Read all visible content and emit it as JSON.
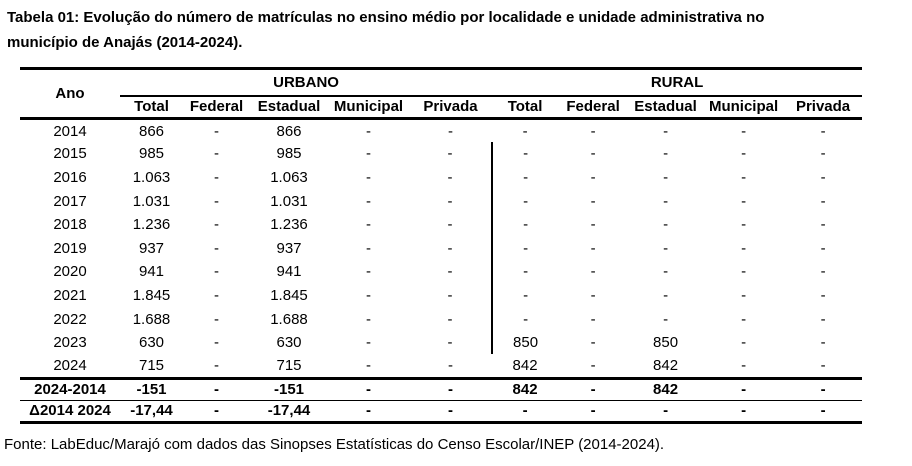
{
  "page": {
    "title_line1": "Tabela 01: Evolução do número de matrículas no ensino médio por localidade e unidade administrativa no",
    "title_line2": "município de Anajás (2014-2024).",
    "source": "Fonte: LabEduc/Marajó com dados das Sinopses Estatísticas do Censo Escolar/INEP (2014-2024)."
  },
  "chart_data": {
    "type": "table",
    "year_header": "Ano",
    "group_headers": [
      {
        "label": "URBANO"
      },
      {
        "label": "RURAL"
      }
    ],
    "sub_headers": [
      "Total",
      "Federal",
      "Estadual",
      "Municipal",
      "Privada",
      "Total",
      "Federal",
      "Estadual",
      "Municipal",
      "Privada"
    ],
    "rows": [
      {
        "ano": "2014",
        "values": [
          "866",
          "-",
          "866",
          "-",
          "-",
          "-",
          "-",
          "-",
          "-",
          "-"
        ]
      },
      {
        "ano": "2015",
        "values": [
          "985",
          "-",
          "985",
          "-",
          "-",
          "-",
          "-",
          "-",
          "-",
          "-"
        ]
      },
      {
        "ano": "2016",
        "values": [
          "1.063",
          "-",
          "1.063",
          "-",
          "-",
          "-",
          "-",
          "-",
          "-",
          "-"
        ]
      },
      {
        "ano": "2017",
        "values": [
          "1.031",
          "-",
          "1.031",
          "-",
          "-",
          "-",
          "-",
          "-",
          "-",
          "-"
        ]
      },
      {
        "ano": "2018",
        "values": [
          "1.236",
          "-",
          "1.236",
          "-",
          "-",
          "-",
          "-",
          "-",
          "-",
          "-"
        ]
      },
      {
        "ano": "2019",
        "values": [
          "937",
          "-",
          "937",
          "-",
          "-",
          "-",
          "-",
          "-",
          "-",
          "-"
        ]
      },
      {
        "ano": "2020",
        "values": [
          "941",
          "-",
          "941",
          "-",
          "-",
          "-",
          "-",
          "-",
          "-",
          "-"
        ]
      },
      {
        "ano": "2021",
        "values": [
          "1.845",
          "-",
          "1.845",
          "-",
          "-",
          "-",
          "-",
          "-",
          "-",
          "-"
        ]
      },
      {
        "ano": "2022",
        "values": [
          "1.688",
          "-",
          "1.688",
          "-",
          "-",
          "-",
          "-",
          "-",
          "-",
          "-"
        ]
      },
      {
        "ano": "2023",
        "values": [
          "630",
          "-",
          "630",
          "-",
          "-",
          "850",
          "-",
          "850",
          "-",
          "-"
        ]
      },
      {
        "ano": "2024",
        "values": [
          "715",
          "-",
          "715",
          "-",
          "-",
          "842",
          "-",
          "842",
          "-",
          "-"
        ]
      }
    ],
    "summary_rows": [
      {
        "ano": "2024-2014",
        "values": [
          "-151",
          "-",
          "-151",
          "-",
          "-",
          "842",
          "-",
          "842",
          "-",
          "-"
        ]
      },
      {
        "ano": "Δ2014 2024",
        "values": [
          "-17,44",
          "-",
          "-17,44",
          "-",
          "-",
          "-",
          "-",
          "-",
          "-",
          "-"
        ]
      }
    ],
    "colors": {
      "text": "#000000",
      "border": "#000000",
      "background": "#ffffff"
    }
  }
}
